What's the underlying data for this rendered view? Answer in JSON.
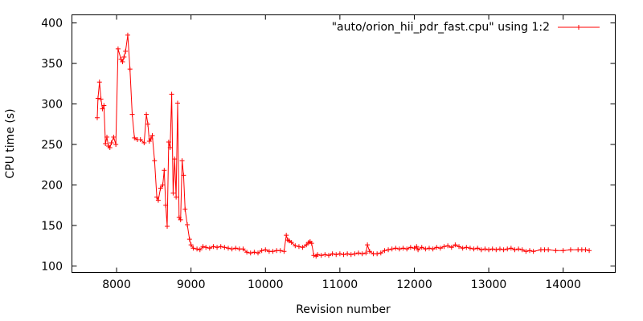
{
  "chart_data": {
    "type": "line",
    "xlabel": "Revision number",
    "ylabel": "CPU time (s)",
    "xlim": [
      7400,
      14700
    ],
    "ylim": [
      92,
      410
    ],
    "x_ticks": [
      8000,
      9000,
      10000,
      11000,
      12000,
      13000,
      14000
    ],
    "y_ticks": [
      100,
      150,
      200,
      250,
      300,
      350,
      400
    ],
    "x_tick_labels": [
      "8000",
      "9000",
      "10000",
      "11000",
      "12000",
      "13000",
      "14000"
    ],
    "y_tick_labels": [
      "100",
      "150",
      "200",
      "250",
      "300",
      "350",
      "400"
    ],
    "grid": false,
    "legend_position": "top-right",
    "colors": {
      "series": "#ff0000",
      "axes": "#000000"
    },
    "series": [
      {
        "name": "\"auto/orion_hii_pdr_fast.cpu\" using 1:2",
        "marker": "plus",
        "points": [
          [
            7740,
            283
          ],
          [
            7750,
            307
          ],
          [
            7770,
            327
          ],
          [
            7790,
            306
          ],
          [
            7810,
            294
          ],
          [
            7830,
            298
          ],
          [
            7850,
            251
          ],
          [
            7870,
            259
          ],
          [
            7890,
            248
          ],
          [
            7910,
            246
          ],
          [
            7930,
            252
          ],
          [
            7960,
            259
          ],
          [
            7990,
            250
          ],
          [
            8020,
            368
          ],
          [
            8060,
            355
          ],
          [
            8080,
            352
          ],
          [
            8100,
            358
          ],
          [
            8120,
            365
          ],
          [
            8150,
            385
          ],
          [
            8180,
            343
          ],
          [
            8210,
            287
          ],
          [
            8240,
            258
          ],
          [
            8280,
            256
          ],
          [
            8320,
            256
          ],
          [
            8370,
            252
          ],
          [
            8400,
            287
          ],
          [
            8420,
            275
          ],
          [
            8440,
            254
          ],
          [
            8460,
            257
          ],
          [
            8480,
            261
          ],
          [
            8510,
            230
          ],
          [
            8540,
            185
          ],
          [
            8560,
            181
          ],
          [
            8590,
            196
          ],
          [
            8620,
            200
          ],
          [
            8640,
            218
          ],
          [
            8660,
            175
          ],
          [
            8680,
            149
          ],
          [
            8700,
            253
          ],
          [
            8720,
            246
          ],
          [
            8740,
            312
          ],
          [
            8760,
            190
          ],
          [
            8780,
            232
          ],
          [
            8800,
            185
          ],
          [
            8820,
            301
          ],
          [
            8840,
            160
          ],
          [
            8860,
            157
          ],
          [
            8880,
            230
          ],
          [
            8900,
            212
          ],
          [
            8920,
            170
          ],
          [
            8950,
            151
          ],
          [
            8980,
            133
          ],
          [
            9000,
            126
          ],
          [
            9030,
            122
          ],
          [
            9080,
            121
          ],
          [
            9120,
            120
          ],
          [
            9160,
            124
          ],
          [
            9200,
            123
          ],
          [
            9250,
            122
          ],
          [
            9300,
            124
          ],
          [
            9350,
            123
          ],
          [
            9400,
            124
          ],
          [
            9450,
            123
          ],
          [
            9500,
            122
          ],
          [
            9550,
            121
          ],
          [
            9600,
            122
          ],
          [
            9650,
            121
          ],
          [
            9700,
            121
          ],
          [
            9750,
            117
          ],
          [
            9800,
            116
          ],
          [
            9850,
            117
          ],
          [
            9900,
            116
          ],
          [
            9950,
            119
          ],
          [
            10000,
            120
          ],
          [
            10050,
            118
          ],
          [
            10100,
            118
          ],
          [
            10150,
            119
          ],
          [
            10200,
            119
          ],
          [
            10250,
            118
          ],
          [
            10280,
            138
          ],
          [
            10300,
            132
          ],
          [
            10320,
            131
          ],
          [
            10350,
            129
          ],
          [
            10400,
            125
          ],
          [
            10450,
            124
          ],
          [
            10500,
            123
          ],
          [
            10550,
            126
          ],
          [
            10580,
            129
          ],
          [
            10600,
            130
          ],
          [
            10620,
            128
          ],
          [
            10650,
            113
          ],
          [
            10680,
            112
          ],
          [
            10700,
            114
          ],
          [
            10750,
            113
          ],
          [
            10800,
            114
          ],
          [
            10850,
            113
          ],
          [
            10900,
            115
          ],
          [
            10950,
            114
          ],
          [
            11000,
            115
          ],
          [
            11050,
            114
          ],
          [
            11100,
            115
          ],
          [
            11150,
            114
          ],
          [
            11200,
            115
          ],
          [
            11250,
            116
          ],
          [
            11300,
            115
          ],
          [
            11350,
            116
          ],
          [
            11370,
            126
          ],
          [
            11400,
            118
          ],
          [
            11450,
            115
          ],
          [
            11500,
            115
          ],
          [
            11550,
            116
          ],
          [
            11600,
            119
          ],
          [
            11650,
            120
          ],
          [
            11700,
            121
          ],
          [
            11750,
            122
          ],
          [
            11800,
            121
          ],
          [
            11850,
            122
          ],
          [
            11900,
            121
          ],
          [
            11950,
            123
          ],
          [
            12000,
            122
          ],
          [
            12030,
            124
          ],
          [
            12050,
            120
          ],
          [
            12100,
            123
          ],
          [
            12150,
            121
          ],
          [
            12200,
            122
          ],
          [
            12250,
            121
          ],
          [
            12300,
            123
          ],
          [
            12350,
            122
          ],
          [
            12400,
            124
          ],
          [
            12450,
            125
          ],
          [
            12500,
            123
          ],
          [
            12550,
            126
          ],
          [
            12600,
            124
          ],
          [
            12650,
            122
          ],
          [
            12700,
            123
          ],
          [
            12750,
            122
          ],
          [
            12800,
            121
          ],
          [
            12850,
            122
          ],
          [
            12900,
            120
          ],
          [
            12950,
            121
          ],
          [
            13000,
            120
          ],
          [
            13050,
            121
          ],
          [
            13100,
            120
          ],
          [
            13150,
            121
          ],
          [
            13200,
            120
          ],
          [
            13250,
            121
          ],
          [
            13300,
            122
          ],
          [
            13350,
            120
          ],
          [
            13400,
            121
          ],
          [
            13450,
            120
          ],
          [
            13500,
            118
          ],
          [
            13550,
            119
          ],
          [
            13600,
            118
          ],
          [
            13700,
            120
          ],
          [
            13750,
            120
          ],
          [
            13800,
            120
          ],
          [
            13900,
            119
          ],
          [
            14000,
            119
          ],
          [
            14100,
            120
          ],
          [
            14200,
            120
          ],
          [
            14250,
            120
          ],
          [
            14300,
            120
          ],
          [
            14350,
            119
          ]
        ]
      }
    ]
  }
}
